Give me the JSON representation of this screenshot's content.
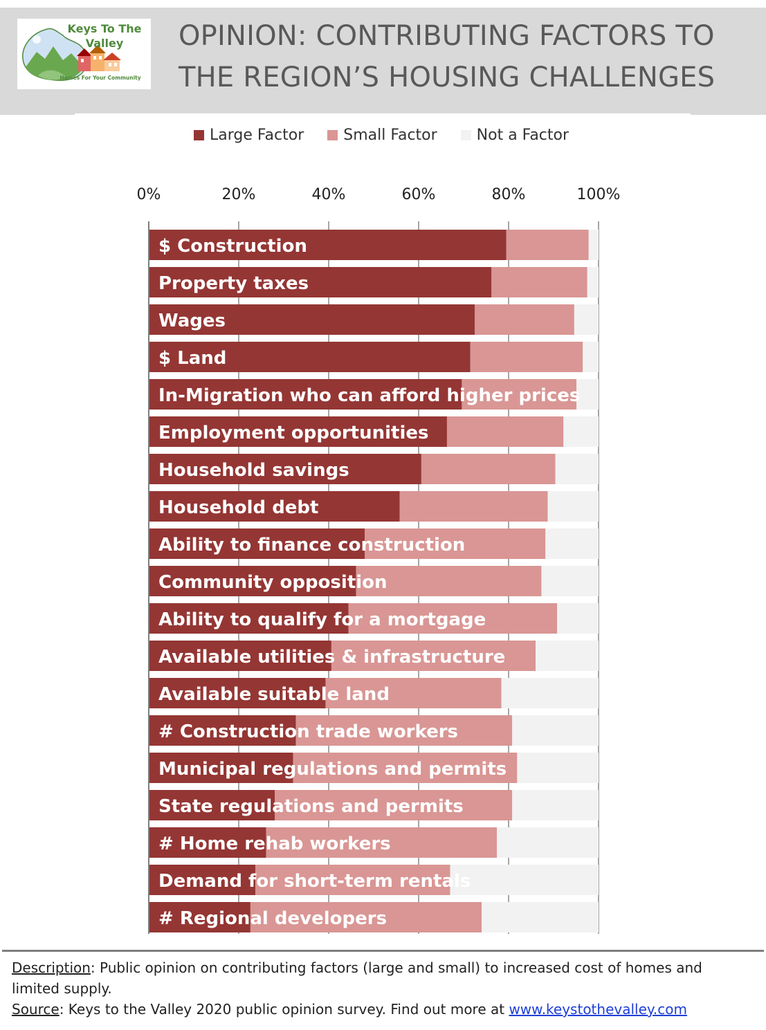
{
  "logo": {
    "title_line1": "Keys To The",
    "title_line2": "Valley",
    "tagline": "Homes For Your Community"
  },
  "title": {
    "line1": "OPINION: CONTRIBUTING FACTORS TO",
    "line2": "THE REGION’S HOUSING CHALLENGES"
  },
  "colors": {
    "large": "#943634",
    "small": "#d99694",
    "none": "#f2f2f2",
    "header_bg": "#d9d9d9"
  },
  "chart_data": {
    "type": "bar",
    "orientation": "horizontal",
    "stacked": true,
    "percent_axis": true,
    "xlim": [
      0,
      100
    ],
    "xticks": [
      "0%",
      "20%",
      "40%",
      "60%",
      "80%",
      "100%"
    ],
    "legend_position": "top",
    "categories": [
      "$ Construction",
      "Property taxes",
      "Wages",
      "$ Land",
      "In-Migration who can afford higher prices",
      "Employment opportunities",
      "Household savings",
      "Household debt",
      "Ability to finance construction",
      "Community opposition",
      "Ability to qualify for a mortgage",
      "Available utilities & infrastructure",
      "Available suitable land",
      "# Construction trade workers",
      "Municipal regulations and permits",
      "State regulations and permits",
      "# Home rehab workers",
      "Demand for short-term rentals",
      "# Regional developers"
    ],
    "series": [
      {
        "name": "Large Factor",
        "values": [
          79.5,
          76.2,
          72.5,
          71.5,
          69.6,
          66.3,
          60.6,
          55.8,
          48.0,
          46.1,
          44.4,
          40.6,
          39.3,
          32.7,
          32.1,
          28.0,
          26.1,
          23.7,
          22.6
        ]
      },
      {
        "name": "Small Factor",
        "values": [
          18.3,
          21.3,
          22.1,
          25.0,
          25.5,
          25.9,
          29.8,
          32.9,
          40.2,
          41.2,
          46.4,
          45.4,
          39.1,
          48.1,
          49.8,
          52.8,
          51.3,
          43.3,
          51.4
        ]
      },
      {
        "name": "Not a Factor",
        "values": [
          2.2,
          2.5,
          5.4,
          3.5,
          4.9,
          7.8,
          9.6,
          11.3,
          11.8,
          12.7,
          9.2,
          14.0,
          21.6,
          19.2,
          18.1,
          19.2,
          22.6,
          33.0,
          26.0
        ]
      }
    ]
  },
  "notes": {
    "description_label": "Description",
    "description_text": ": Public opinion on contributing factors (large and small) to increased cost of homes and limited supply.",
    "source_label": "Source",
    "source_text": ": Keys to the Valley 2020 public opinion survey. Find out more at ",
    "source_link": "www.keystothevalley.com"
  }
}
